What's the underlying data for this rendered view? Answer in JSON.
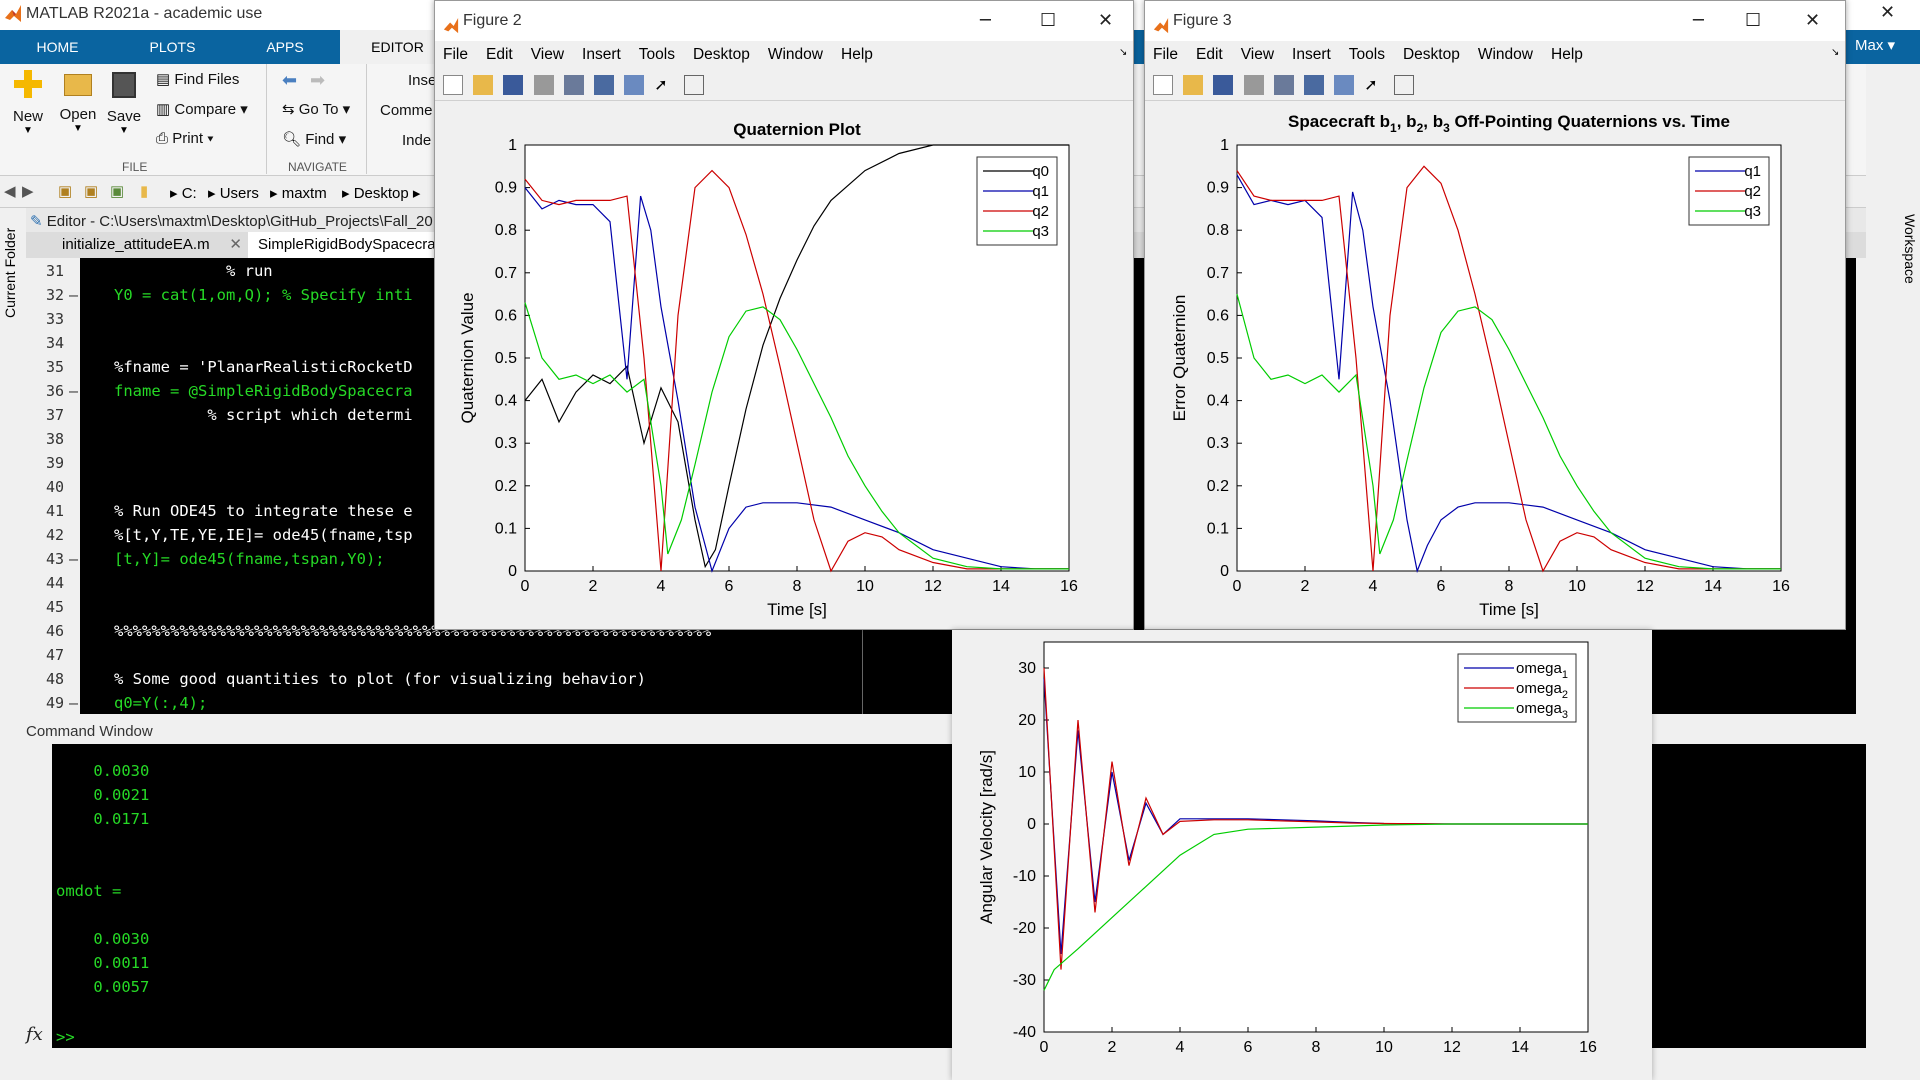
{
  "main": {
    "title": "MATLAB R2021a - academic use",
    "user": "Max",
    "tabs": [
      "HOME",
      "PLOTS",
      "APPS",
      "EDITOR"
    ],
    "ribbon": {
      "new": "New",
      "open": "Open",
      "save": "Save",
      "find_files": "Find Files",
      "compare": "Compare",
      "print": "Print",
      "go_to": "Go To",
      "find": "Find",
      "insert": "Inse",
      "comment": "Comme",
      "indent": "Inde",
      "group_file": "FILE",
      "group_navigate": "NAVIGATE"
    },
    "path": [
      "C:",
      "Users",
      "maxtm",
      "Desktop"
    ],
    "side_current_folder": "Current Folder",
    "side_workspace": "Workspace"
  },
  "editor": {
    "title": "Editor - C:\\Users\\maxtm\\Desktop\\GitHub_Projects\\Fall_20",
    "tabs": [
      "initialize_attitudeEA.m",
      "SimpleRigidBodySpacecra"
    ],
    "lines": [
      {
        "n": "31",
        "dash": false,
        "text": "            % run",
        "color": "#ffffff"
      },
      {
        "n": "32",
        "dash": true,
        "text": "Y0 = cat(1,om,Q); % Specify inti",
        "color": "#26d926"
      },
      {
        "n": "33",
        "dash": false,
        "text": "",
        "color": "#ffffff"
      },
      {
        "n": "34",
        "dash": false,
        "text": "",
        "color": "#ffffff"
      },
      {
        "n": "35",
        "dash": false,
        "text": "%fname = 'PlanarRealisticRocketD",
        "color": "#ffffff"
      },
      {
        "n": "36",
        "dash": true,
        "text": "fname = @SimpleRigidBodySpacecra",
        "color": "#26d926"
      },
      {
        "n": "37",
        "dash": false,
        "text": "          % script which determi",
        "color": "#ffffff"
      },
      {
        "n": "38",
        "dash": false,
        "text": "",
        "color": "#ffffff"
      },
      {
        "n": "39",
        "dash": false,
        "text": "",
        "color": "#ffffff"
      },
      {
        "n": "40",
        "dash": false,
        "text": "",
        "color": "#ffffff"
      },
      {
        "n": "41",
        "dash": false,
        "text": "% Run ODE45 to integrate these e",
        "color": "#ffffff"
      },
      {
        "n": "42",
        "dash": false,
        "text": "%[t,Y,TE,YE,IE]= ode45(fname,tsp",
        "color": "#ffffff"
      },
      {
        "n": "43",
        "dash": true,
        "text": "[t,Y]= ode45(fname,tspan,Y0);",
        "color": "#26d926"
      },
      {
        "n": "44",
        "dash": false,
        "text": "",
        "color": "#ffffff"
      },
      {
        "n": "45",
        "dash": false,
        "text": "",
        "color": "#ffffff"
      },
      {
        "n": "46",
        "dash": false,
        "text": "%%%%%%%%%%%%%%%%%%%%%%%%%%%%%%%%%%%%%%%%%%%%%%%%%%%%%%%%%%%%%%%%",
        "color": "#ffffff"
      },
      {
        "n": "47",
        "dash": false,
        "text": "",
        "color": "#ffffff"
      },
      {
        "n": "48",
        "dash": false,
        "text": "% Some good quantities to plot (for visualizing behavior)",
        "color": "#ffffff"
      },
      {
        "n": "49",
        "dash": true,
        "text": "q0=Y(:,4);",
        "color": "#26d926"
      }
    ]
  },
  "command_window": {
    "header": "Command Window",
    "lines": [
      "    0.0030",
      "    0.0021",
      "    0.0171",
      "",
      "",
      "omdot =",
      "",
      "    0.0030",
      "    0.0011",
      "    0.0057"
    ],
    "prompt": ">>",
    "fx": "fx"
  },
  "menu_items": [
    "File",
    "Edit",
    "View",
    "Insert",
    "Tools",
    "Desktop",
    "Window",
    "Help"
  ],
  "figure2": {
    "title": "Figure 2"
  },
  "figure3": {
    "title": "Figure 3"
  },
  "chart_data": [
    {
      "type": "line",
      "title": "Quaternion Plot",
      "xlabel": "Time [s]",
      "ylabel": "Quaternion Value",
      "xlim": [
        0,
        16
      ],
      "ylim": [
        0,
        1
      ],
      "xticks": [
        0,
        2,
        4,
        6,
        8,
        10,
        12,
        14,
        16
      ],
      "yticks": [
        0,
        0.1,
        0.2,
        0.3,
        0.4,
        0.5,
        0.6,
        0.7,
        0.8,
        0.9,
        1
      ],
      "legend": "top-right",
      "series": [
        {
          "name": "q0",
          "color": "#000000",
          "x": [
            0,
            0.5,
            1,
            1.5,
            2,
            2.5,
            3,
            3.5,
            4,
            4.5,
            5,
            5.3,
            5.6,
            6,
            6.5,
            7,
            7.5,
            8,
            8.5,
            9,
            10,
            11,
            12,
            13,
            14,
            15,
            16
          ],
          "y": [
            0.4,
            0.45,
            0.35,
            0.42,
            0.46,
            0.44,
            0.48,
            0.3,
            0.43,
            0.35,
            0.12,
            0.01,
            0.05,
            0.2,
            0.38,
            0.53,
            0.64,
            0.73,
            0.81,
            0.87,
            0.94,
            0.98,
            1.0,
            1.0,
            1.0,
            1.0,
            1.0
          ]
        },
        {
          "name": "q1",
          "color": "#0000aa",
          "x": [
            0,
            0.5,
            1,
            1.5,
            2,
            2.5,
            3,
            3.4,
            3.7,
            4,
            4.5,
            5,
            5.5,
            6,
            6.5,
            7,
            8,
            9,
            10,
            11,
            12,
            13,
            14,
            15,
            16
          ],
          "y": [
            0.9,
            0.85,
            0.87,
            0.86,
            0.86,
            0.82,
            0.45,
            0.88,
            0.8,
            0.62,
            0.4,
            0.15,
            0.0,
            0.1,
            0.15,
            0.16,
            0.16,
            0.15,
            0.12,
            0.09,
            0.05,
            0.03,
            0.01,
            0.005,
            0.005
          ]
        },
        {
          "name": "q2",
          "color": "#cc0000",
          "x": [
            0,
            0.5,
            1,
            1.5,
            2,
            2.5,
            3,
            3.5,
            4,
            4.5,
            5,
            5.5,
            6,
            6.5,
            7,
            7.5,
            8,
            8.5,
            9,
            9.5,
            10,
            10.5,
            11,
            12,
            13,
            14,
            15,
            16
          ],
          "y": [
            0.92,
            0.87,
            0.86,
            0.87,
            0.87,
            0.87,
            0.88,
            0.5,
            0.0,
            0.6,
            0.9,
            0.94,
            0.9,
            0.79,
            0.65,
            0.48,
            0.3,
            0.12,
            0.0,
            0.07,
            0.09,
            0.08,
            0.05,
            0.02,
            0.005,
            0.005,
            0.005,
            0.005
          ]
        },
        {
          "name": "q3",
          "color": "#00cc00",
          "x": [
            0,
            0.5,
            1,
            1.5,
            2,
            2.5,
            3,
            3.5,
            4,
            4.2,
            4.6,
            5,
            5.5,
            6,
            6.5,
            7,
            7.5,
            8,
            8.5,
            9,
            9.5,
            10,
            10.5,
            11,
            12,
            13,
            14,
            15,
            16
          ],
          "y": [
            0.63,
            0.5,
            0.45,
            0.46,
            0.44,
            0.46,
            0.42,
            0.45,
            0.2,
            0.04,
            0.12,
            0.25,
            0.42,
            0.55,
            0.61,
            0.62,
            0.59,
            0.52,
            0.44,
            0.36,
            0.27,
            0.2,
            0.14,
            0.09,
            0.03,
            0.01,
            0.005,
            0.005,
            0.005
          ]
        }
      ]
    },
    {
      "type": "line",
      "title_parts": [
        "Spacecraft b",
        "1",
        ", b",
        "2",
        ", b",
        "3",
        " Off-Pointing Quaternions vs. Time"
      ],
      "xlabel": "Time [s]",
      "ylabel": "Error Quaternion",
      "xlim": [
        0,
        16
      ],
      "ylim": [
        0,
        1
      ],
      "xticks": [
        0,
        2,
        4,
        6,
        8,
        10,
        12,
        14,
        16
      ],
      "yticks": [
        0,
        0.1,
        0.2,
        0.3,
        0.4,
        0.5,
        0.6,
        0.7,
        0.8,
        0.9,
        1
      ],
      "legend": "top-right",
      "series": [
        {
          "name": "q1",
          "color": "#0000aa",
          "x": [
            0,
            0.5,
            1,
            1.5,
            2,
            2.5,
            3,
            3.4,
            3.7,
            4,
            4.5,
            5,
            5.3,
            5.6,
            6,
            6.5,
            7,
            8,
            9,
            10,
            11,
            12,
            13,
            14,
            15,
            16
          ],
          "y": [
            0.93,
            0.86,
            0.87,
            0.86,
            0.87,
            0.83,
            0.45,
            0.89,
            0.8,
            0.62,
            0.4,
            0.12,
            0.0,
            0.06,
            0.12,
            0.15,
            0.16,
            0.16,
            0.15,
            0.12,
            0.09,
            0.05,
            0.03,
            0.01,
            0.005,
            0.005
          ]
        },
        {
          "name": "q2",
          "color": "#cc0000",
          "x": [
            0,
            0.5,
            1,
            1.5,
            2,
            2.5,
            3,
            3.5,
            4,
            4.5,
            5,
            5.5,
            6,
            6.5,
            7,
            7.5,
            8,
            8.5,
            9,
            9.5,
            10,
            10.5,
            11,
            12,
            13,
            14,
            15,
            16
          ],
          "y": [
            0.94,
            0.88,
            0.87,
            0.87,
            0.87,
            0.87,
            0.88,
            0.5,
            0.0,
            0.6,
            0.9,
            0.95,
            0.91,
            0.8,
            0.65,
            0.48,
            0.3,
            0.12,
            0.0,
            0.07,
            0.09,
            0.08,
            0.05,
            0.02,
            0.005,
            0.005,
            0.005,
            0.005
          ]
        },
        {
          "name": "q3",
          "color": "#00cc00",
          "x": [
            0,
            0.5,
            1,
            1.5,
            2,
            2.5,
            3,
            3.5,
            4,
            4.2,
            4.6,
            5,
            5.5,
            6,
            6.5,
            7,
            7.5,
            8,
            8.5,
            9,
            9.5,
            10,
            10.5,
            11,
            12,
            13,
            14,
            15,
            16
          ],
          "y": [
            0.65,
            0.5,
            0.45,
            0.46,
            0.44,
            0.46,
            0.42,
            0.46,
            0.2,
            0.04,
            0.12,
            0.26,
            0.43,
            0.56,
            0.61,
            0.62,
            0.59,
            0.52,
            0.44,
            0.36,
            0.27,
            0.2,
            0.14,
            0.09,
            0.03,
            0.01,
            0.005,
            0.005,
            0.005
          ]
        }
      ]
    },
    {
      "type": "line",
      "xlabel": "",
      "ylabel": "Angular Velocity [rad/s]",
      "xlim": [
        0,
        16
      ],
      "ylim": [
        -40,
        35
      ],
      "xticks": [
        0,
        2,
        4,
        6,
        8,
        10,
        12,
        14,
        16
      ],
      "yticks": [
        -40,
        -30,
        -20,
        -10,
        0,
        10,
        20,
        30
      ],
      "legend": "top-right",
      "series": [
        {
          "name": "omega",
          "sub": "1",
          "color": "#0000aa",
          "x": [
            0,
            0.5,
            1,
            1.5,
            2,
            2.5,
            3,
            3.5,
            4,
            5,
            6,
            7,
            8,
            9,
            10,
            12,
            14,
            16
          ],
          "y": [
            28,
            -25,
            18,
            -15,
            10,
            -7,
            4,
            -2,
            1,
            1,
            1,
            0.8,
            0.6,
            0.3,
            0.1,
            0,
            0,
            0
          ]
        },
        {
          "name": "omega",
          "sub": "2",
          "color": "#cc0000",
          "x": [
            0,
            0.5,
            1,
            1.5,
            2,
            2.5,
            3,
            3.5,
            4,
            5,
            6,
            7,
            8,
            9,
            10,
            12,
            14,
            16
          ],
          "y": [
            30,
            -28,
            20,
            -17,
            12,
            -8,
            5,
            -2,
            0.5,
            0.8,
            0.8,
            0.6,
            0.4,
            0.2,
            0.1,
            0,
            0,
            0
          ]
        },
        {
          "name": "omega",
          "sub": "3",
          "color": "#00cc00",
          "x": [
            0,
            0.3,
            1,
            2,
            3,
            4,
            5,
            6,
            7,
            8,
            9,
            10,
            12,
            14,
            16
          ],
          "y": [
            -32,
            -28,
            -24,
            -18,
            -12,
            -6,
            -2,
            -1,
            -0.8,
            -0.6,
            -0.4,
            -0.2,
            0,
            0,
            0
          ]
        }
      ]
    }
  ]
}
